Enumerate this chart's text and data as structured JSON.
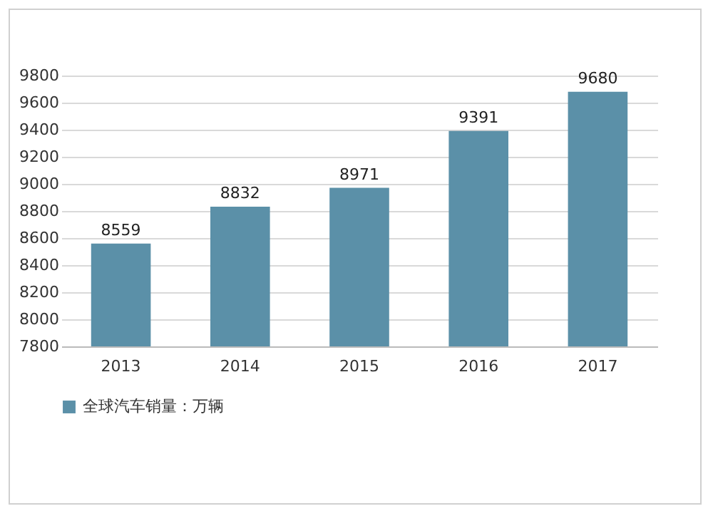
{
  "chart_data": {
    "type": "bar",
    "categories": [
      "2013",
      "2014",
      "2015",
      "2016",
      "2017"
    ],
    "series": [
      {
        "name": "全球汽车销量：万辆",
        "color": "#5b90a8",
        "values": [
          8559,
          8832,
          8971,
          9391,
          9680
        ]
      }
    ],
    "ylim": [
      7800,
      9800
    ],
    "yticks": [
      7800,
      8000,
      8200,
      8400,
      8600,
      8800,
      9000,
      9200,
      9400,
      9600,
      9800
    ],
    "grid": "y",
    "legend": "bottom",
    "data_labels": true
  }
}
